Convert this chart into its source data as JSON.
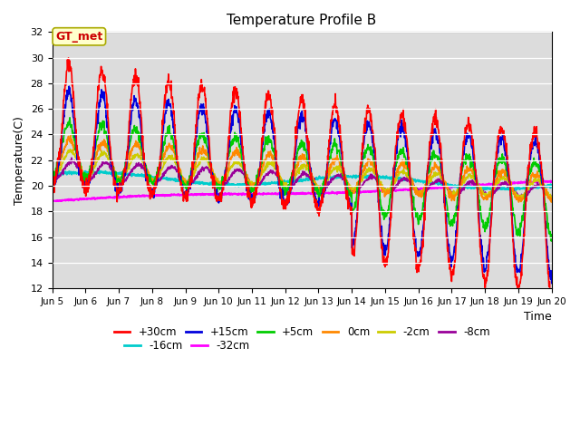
{
  "title": "Temperature Profile B",
  "xlabel": "Time",
  "ylabel": "Temperature(C)",
  "ylim": [
    12,
    32
  ],
  "yticks": [
    12,
    14,
    16,
    18,
    20,
    22,
    24,
    26,
    28,
    30,
    32
  ],
  "bg_color": "#dcdcdc",
  "series_colors": {
    "+30cm": "#ff0000",
    "+15cm": "#0000dd",
    "+5cm": "#00cc00",
    "0cm": "#ff8800",
    "-2cm": "#cccc00",
    "-8cm": "#990099",
    "-16cm": "#00cccc",
    "-32cm": "#ff00ff"
  },
  "series_lw": {
    "+30cm": 1.2,
    "+15cm": 1.2,
    "+5cm": 1.2,
    "0cm": 1.2,
    "-2cm": 1.2,
    "-8cm": 1.2,
    "-16cm": 1.5,
    "-32cm": 1.5
  },
  "annotation_text": "GT_met",
  "annotation_color": "#cc0000",
  "annotation_bg": "#ffffcc",
  "annotation_border": "#aaaa00",
  "x_start": 5,
  "x_end": 20,
  "xtick_labels": [
    "Jun 5",
    "Jun 6",
    "Jun 7",
    "Jun 8",
    "Jun 9",
    "Jun 10",
    "Jun 11",
    "Jun 12",
    "Jun 13",
    "Jun 14",
    "Jun 15",
    "Jun 16",
    "Jun 17",
    "Jun 18",
    "Jun 19",
    "Jun 20"
  ],
  "xtick_positions": [
    5,
    6,
    7,
    8,
    9,
    10,
    11,
    12,
    13,
    14,
    15,
    16,
    17,
    18,
    19,
    20
  ]
}
